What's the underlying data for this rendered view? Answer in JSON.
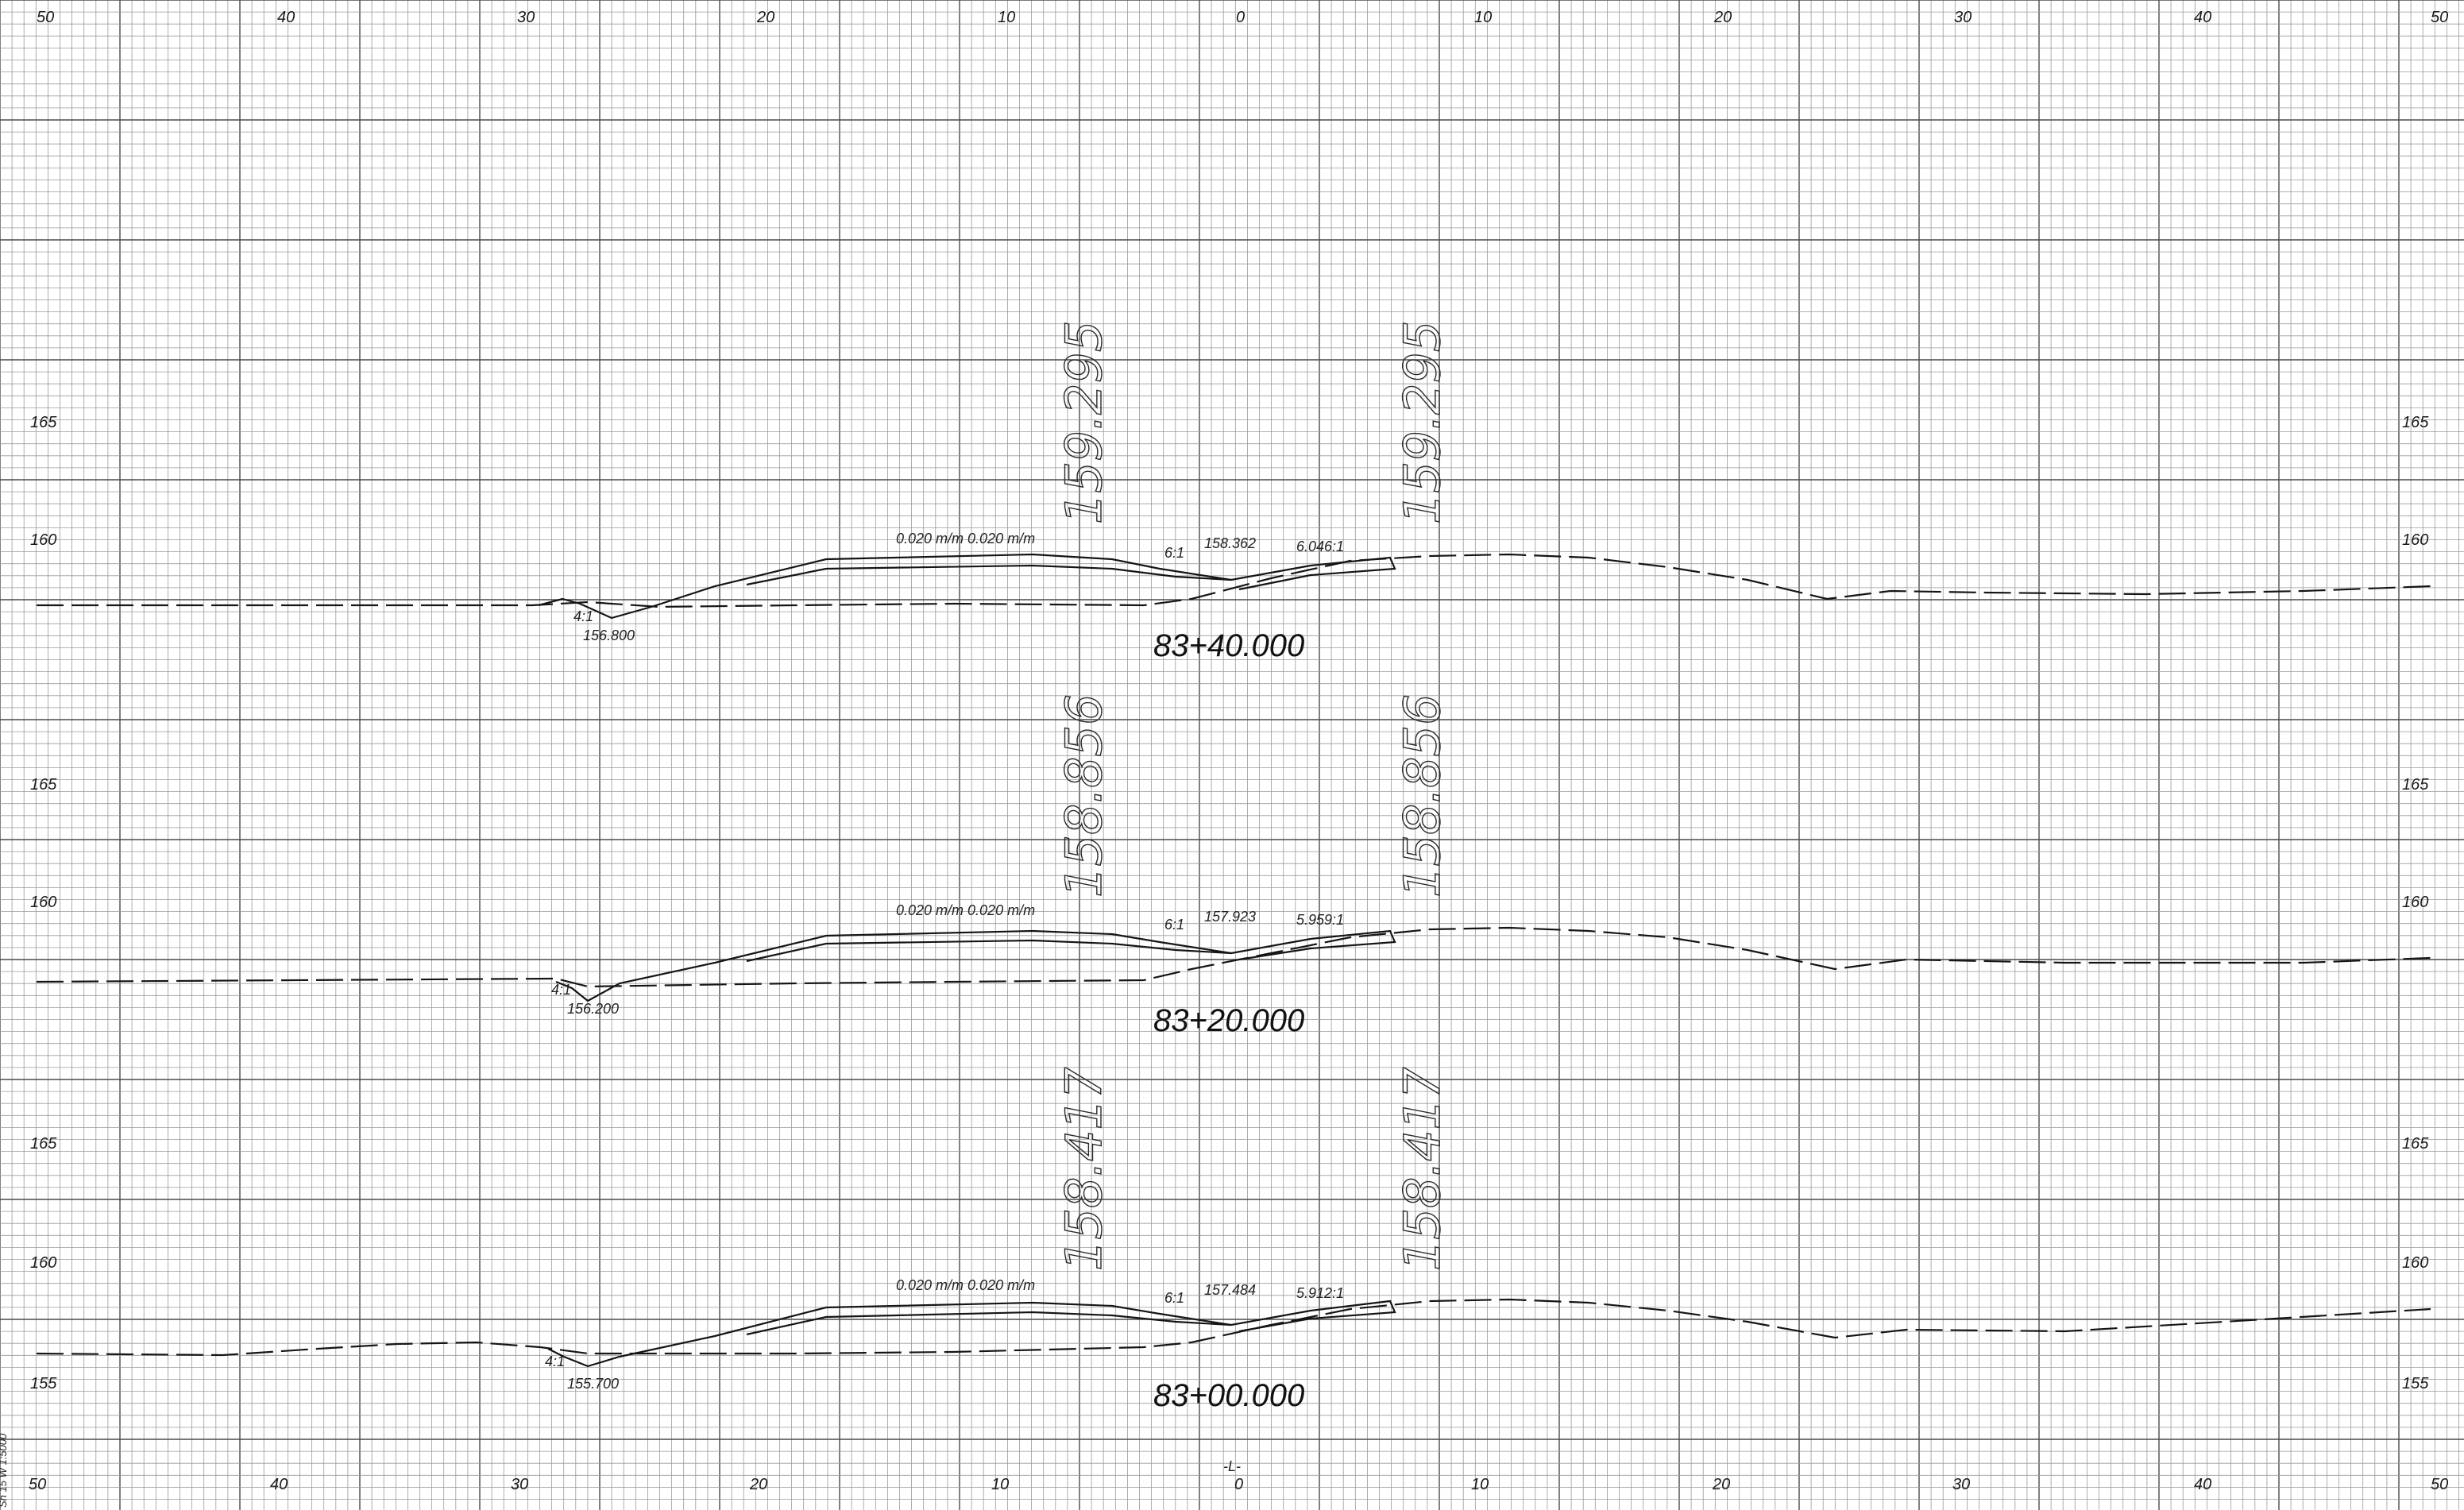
{
  "offset_labels_top": [
    "50",
    "40",
    "30",
    "20",
    "10",
    "0",
    "10",
    "20",
    "30",
    "40",
    "50"
  ],
  "offset_labels_bottom": [
    "50",
    "40",
    "30",
    "20",
    "10",
    "0",
    "10",
    "20",
    "30",
    "40",
    "50"
  ],
  "centerline_label": "-L-",
  "side_note": "Sh 15 W 1:5000",
  "sections": [
    {
      "station": "83+40.000",
      "elev_marks": [
        "165",
        "160"
      ],
      "big_elev_left": "159.295",
      "big_elev_right": "159.295",
      "slope_text": "0.020  m/m  0.020  m/m",
      "grade_text": "158.362",
      "ditch_left": "6:1",
      "ditch_right": "6.046:1",
      "low_text": "156.800",
      "toe_text": "4:1"
    },
    {
      "station": "83+20.000",
      "elev_marks": [
        "165",
        "160"
      ],
      "big_elev_left": "158.856",
      "big_elev_right": "158.856",
      "slope_text": "0.020  m/m  0.020  m/m",
      "grade_text": "157.923",
      "ditch_left": "6:1",
      "ditch_right": "5.959:1",
      "low_text": "156.200",
      "toe_text": "4:1"
    },
    {
      "station": "83+00.000",
      "elev_marks": [
        "165",
        "160",
        "155"
      ],
      "big_elev_left": "158.417",
      "big_elev_right": "158.417",
      "slope_text": "0.020  m/m  0.020  m/m",
      "grade_text": "157.484",
      "ditch_left": "6:1",
      "ditch_right": "5.912:1",
      "low_text": "155.700",
      "toe_text": "4:1"
    }
  ]
}
